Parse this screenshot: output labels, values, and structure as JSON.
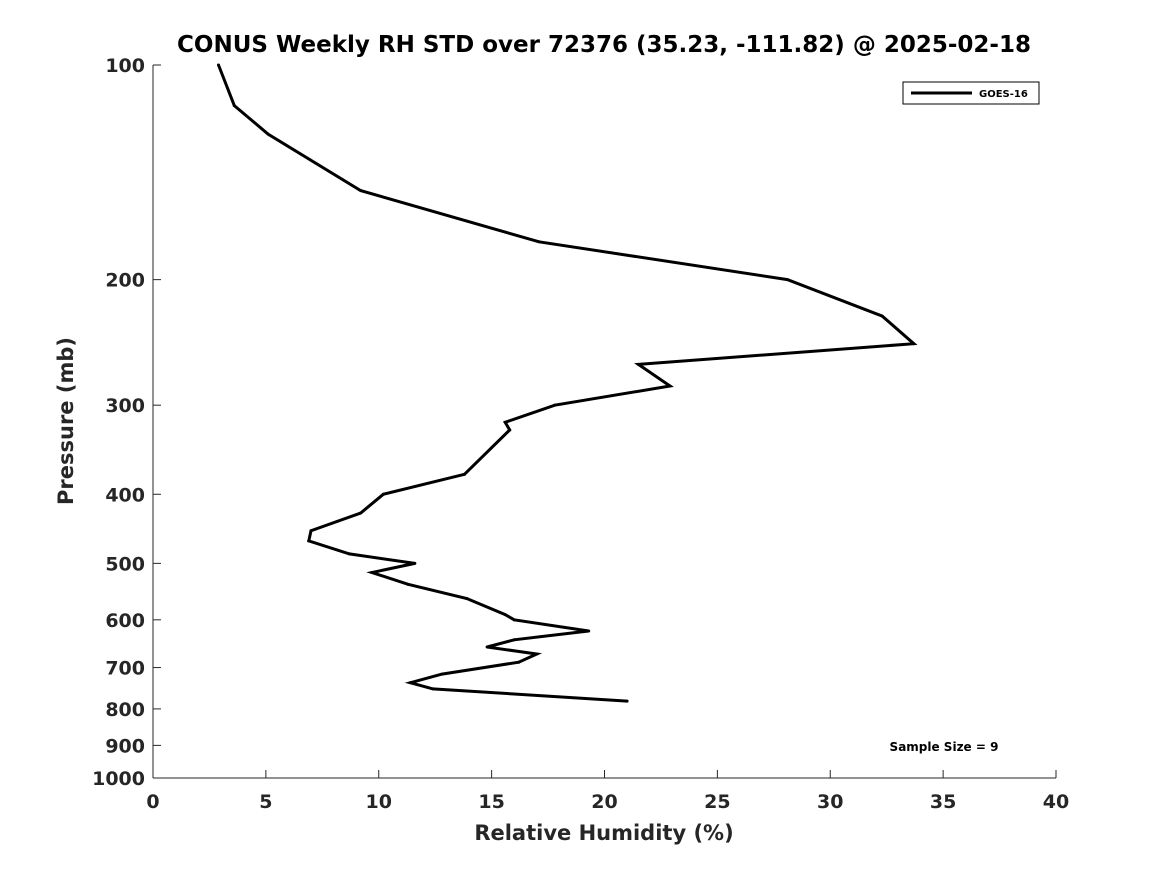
{
  "chart_data": {
    "type": "line",
    "title": "CONUS Weekly RH STD over 72376 (35.23, -111.82) @ 2025-02-18",
    "xlabel": "Relative Humidity (%)",
    "ylabel": "Pressure (mb)",
    "xlim": [
      0,
      40
    ],
    "ylim": [
      100,
      1000
    ],
    "y_scale": "log",
    "y_reversed": true,
    "x_ticks": [
      "0",
      "5",
      "10",
      "15",
      "20",
      "25",
      "30",
      "35",
      "40"
    ],
    "y_ticks": [
      "100",
      "200",
      "300",
      "400",
      "500",
      "600",
      "700",
      "800",
      "900",
      "1000"
    ],
    "grid": false,
    "legend_position": "top-right",
    "series": [
      {
        "name": "GOES-16",
        "color": "#000000",
        "x": [
          2.9,
          3.6,
          5.1,
          9.2,
          17.1,
          28.1,
          32.3,
          33.7,
          21.5,
          22.9,
          17.8,
          15.6,
          15.8,
          13.8,
          10.2,
          9.2,
          7.0,
          6.9,
          8.7,
          11.6,
          9.7,
          11.3,
          13.9,
          15.6,
          16.0,
          19.3,
          16.0,
          14.8,
          17.0,
          16.2,
          12.8,
          11.4,
          12.4,
          21.0
        ],
        "y": [
          100,
          114,
          125,
          150,
          177,
          200,
          225,
          246,
          263,
          282,
          300,
          317,
          325,
          375,
          400,
          425,
          450,
          465,
          485,
          500,
          515,
          535,
          560,
          590,
          600,
          622,
          640,
          655,
          670,
          688,
          715,
          735,
          750,
          780
        ]
      }
    ],
    "annotations": [
      "Sample Size = 9"
    ]
  }
}
